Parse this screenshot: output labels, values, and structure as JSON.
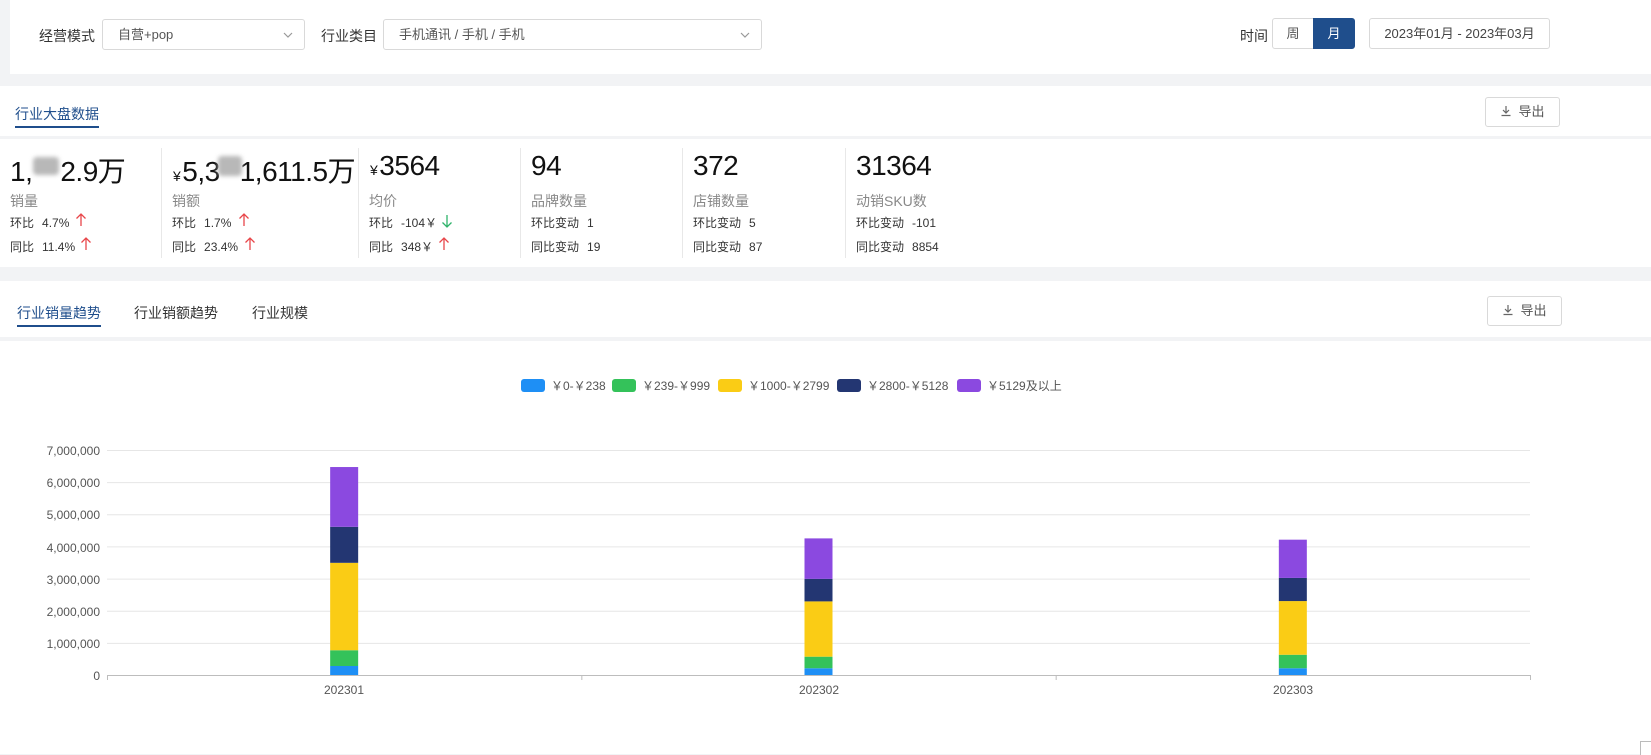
{
  "filters": {
    "mode_label": "经营模式",
    "mode_value": "自营+pop",
    "category_label": "行业类目",
    "category_value": "手机通讯 / 手机 / 手机",
    "time_label": "时间",
    "week_label": "周",
    "month_label": "月",
    "date_range": "2023年01月 - 2023年03月"
  },
  "overview": {
    "tab_label": "行业大盘数据",
    "export_label": "导出",
    "metrics": [
      {
        "value_pre": "1,",
        "value_post": "2.9万",
        "name": "销量",
        "l1": "环比",
        "v1": "4.7%",
        "l2": "同比",
        "v2": "11.4%"
      },
      {
        "currency": "¥",
        "value_pre": "5,3",
        "value_post": "1,611.5万",
        "name": "销额",
        "l1": "环比",
        "v1": "1.7%",
        "l2": "同比",
        "v2": "23.4%"
      },
      {
        "currency": "¥",
        "value": "3564",
        "name": "均价",
        "l1": "环比",
        "v1": "-104￥",
        "l2": "同比",
        "v2": "348￥"
      },
      {
        "value": "94",
        "name": "品牌数量",
        "l1": "环比变动",
        "v1": "1",
        "l2": "同比变动",
        "v2": "19"
      },
      {
        "value": "372",
        "name": "店铺数量",
        "l1": "环比变动",
        "v1": "5",
        "l2": "同比变动",
        "v2": "87"
      },
      {
        "value": "31364",
        "name": "动销SKU数",
        "l1": "环比变动",
        "v1": "-101",
        "l2": "同比变动",
        "v2": "8854"
      }
    ]
  },
  "trend": {
    "tabs": [
      "行业销量趋势",
      "行业销额趋势",
      "行业规模"
    ],
    "export_label": "导出"
  },
  "colors": {
    "accent": "#1f4e8c",
    "up": "#e8464a",
    "down": "#2fb36b",
    "s1": "#1e8ff5",
    "s2": "#34c25a",
    "s3": "#facc15",
    "s4": "#233672",
    "s5": "#8b49e0"
  },
  "chart_data": {
    "type": "bar",
    "stacked": true,
    "categories": [
      "202301",
      "202302",
      "202303"
    ],
    "series": [
      {
        "name": "￥0-￥238",
        "values": [
          280000,
          210000,
          210000
        ]
      },
      {
        "name": "￥239-￥999",
        "values": [
          490000,
          360000,
          420000
        ]
      },
      {
        "name": "￥1000-￥2799",
        "values": [
          2720000,
          1720000,
          1670000
        ]
      },
      {
        "name": "￥2800-￥5128",
        "values": [
          1120000,
          700000,
          720000
        ]
      },
      {
        "name": "￥5129及以上",
        "values": [
          1860000,
          1260000,
          1190000
        ]
      }
    ],
    "ylim": [
      0,
      7000000
    ],
    "yticks": [
      "0",
      "1,000,000",
      "2,000,000",
      "3,000,000",
      "4,000,000",
      "5,000,000",
      "6,000,000",
      "7,000,000"
    ],
    "legend": "top-center",
    "grid": true
  }
}
